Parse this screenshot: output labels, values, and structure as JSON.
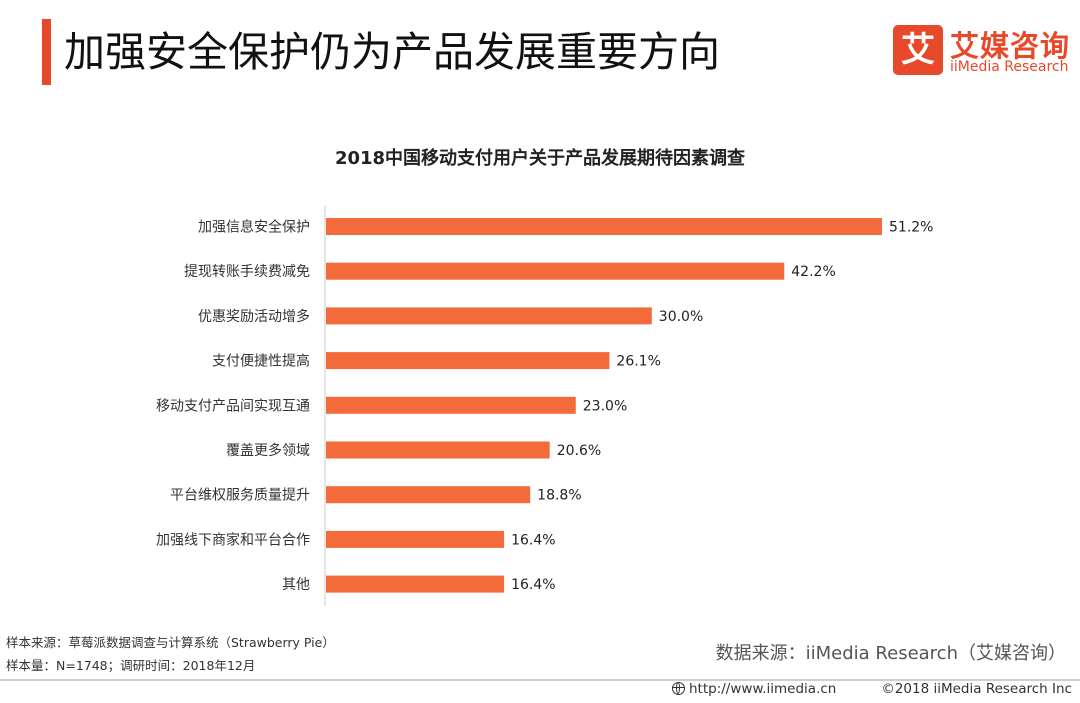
{
  "header": {
    "title": "加强安全保护仍为产品发展重要方向"
  },
  "brand": {
    "mark": "艾",
    "name_cn": "艾媒咨询",
    "name_en": "iiMedia Research",
    "color": "#e8492a"
  },
  "chart_data": {
    "type": "bar",
    "orientation": "horizontal",
    "title": "2018中国移动支付用户关于产品发展期待因素调查",
    "categories": [
      "加强信息安全保护",
      "提现转账手续费减免",
      "优惠奖励活动增多",
      "支付便捷性提高",
      "移动支付产品间实现互通",
      "覆盖更多领域",
      "平台维权服务质量提升",
      "加强线下商家和平台合作",
      "其他"
    ],
    "values": [
      51.2,
      42.2,
      30.0,
      26.1,
      23.0,
      20.6,
      18.8,
      16.4,
      16.4
    ],
    "value_labels": [
      "51.2%",
      "42.2%",
      "30.0%",
      "26.1%",
      "23.0%",
      "20.6%",
      "18.8%",
      "16.4%",
      "16.4%"
    ],
    "xlim": [
      0,
      51.2
    ],
    "bar_color": "#f36b3a",
    "axis_color": "#cccccc",
    "grid": false,
    "legend": "none"
  },
  "notes": {
    "sample_source": "样本来源：草莓派数据调查与计算系统（Strawberry Pie）",
    "sample_size": "样本量：N=1748；调研时间：2018年12月",
    "data_source": "数据来源：iiMedia Research（艾媒咨询）"
  },
  "footer": {
    "url": "http://www.iimedia.cn",
    "copyright": "©2018  iiMedia Research Inc"
  }
}
